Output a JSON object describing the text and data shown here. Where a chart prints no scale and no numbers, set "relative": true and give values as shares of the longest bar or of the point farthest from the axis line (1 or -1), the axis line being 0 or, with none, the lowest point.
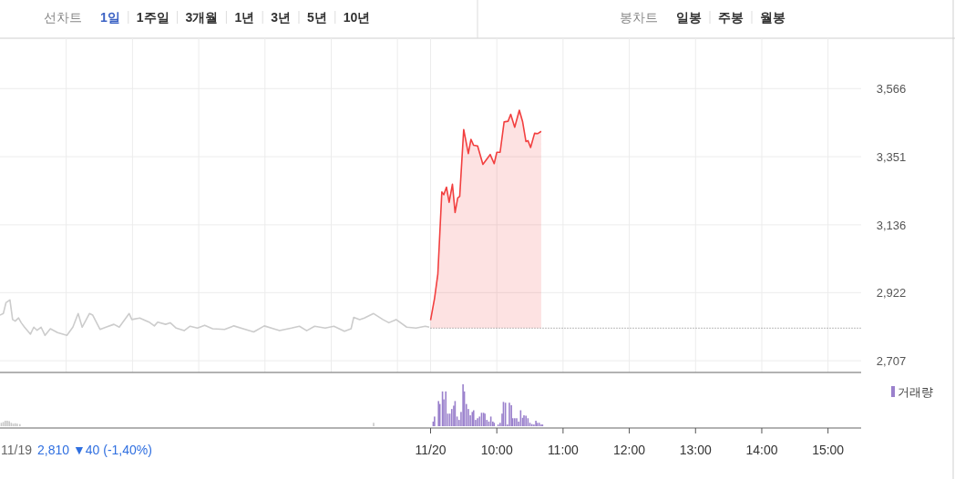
{
  "chart_data": [
    {
      "type": "other",
      "annotations": [
        "선차트",
        "1일",
        "1주일",
        "3개월",
        "1년",
        "3년",
        "5년",
        "10년",
        "봉차트",
        "일봉",
        "주봉",
        "월봉"
      ]
    },
    {
      "type": "line",
      "grid": true,
      "tick_labels": "y",
      "xlim": [
        2.5,
        15.5
      ],
      "ylim": [
        2670,
        3725
      ],
      "xticks": [
        {
          "value": 3.5,
          "label": null
        },
        {
          "value": 4.5,
          "label": null
        },
        {
          "value": 5.5,
          "label": null
        },
        {
          "value": 6.5,
          "label": null
        },
        {
          "value": 7.5,
          "label": null
        },
        {
          "value": 8.5,
          "label": null
        },
        {
          "value": 9,
          "label": null
        },
        {
          "value": 10,
          "label": null
        },
        {
          "value": 11,
          "label": null
        },
        {
          "value": 12,
          "label": null
        },
        {
          "value": 13,
          "label": null
        },
        {
          "value": 14,
          "label": null
        },
        {
          "value": 15,
          "label": null
        }
      ],
      "yticks": [
        {
          "value": 2707,
          "label": "2,707"
        },
        {
          "value": 2922,
          "label": "2,922"
        },
        {
          "value": 3136,
          "label": "3,136"
        },
        {
          "value": 3351,
          "label": "3,351"
        },
        {
          "value": 3566,
          "label": "3,566"
        }
      ],
      "ref_lines": [
        {
          "axis": "y",
          "value": 2810,
          "color": "#777777",
          "line_style": "dotted"
        }
      ],
      "series": [
        {
          "color": "#cccccc",
          "x": [
            2.5,
            2.55,
            2.59,
            2.65,
            2.69,
            2.73,
            2.78,
            2.82,
            2.87,
            2.96,
            3.01,
            3.06,
            3.12,
            3.18,
            3.26,
            3.37,
            3.51,
            3.6,
            3.68,
            3.74,
            3.85,
            3.9,
            4.01,
            4.1,
            4.22,
            4.3,
            4.45,
            4.49,
            4.61,
            4.75,
            4.83,
            4.88,
            5.0,
            5.07,
            5.16,
            5.28,
            5.37,
            5.48,
            5.59,
            5.71,
            5.89,
            6.03,
            6.17,
            6.33,
            6.49,
            6.63,
            6.72,
            6.9,
            7.02,
            7.13,
            7.25,
            7.41,
            7.54,
            7.7,
            7.8,
            7.84,
            7.93,
            8.0,
            8.14,
            8.28,
            8.37,
            8.48,
            8.64,
            8.78,
            8.92,
            8.98
          ],
          "values": [
            2851,
            2856,
            2890,
            2899,
            2837,
            2832,
            2842,
            2827,
            2813,
            2791,
            2813,
            2803,
            2813,
            2787,
            2808,
            2796,
            2787,
            2813,
            2856,
            2813,
            2856,
            2851,
            2806,
            2813,
            2822,
            2813,
            2856,
            2837,
            2842,
            2829,
            2817,
            2829,
            2822,
            2827,
            2810,
            2802,
            2816,
            2810,
            2819,
            2808,
            2806,
            2817,
            2808,
            2798,
            2817,
            2808,
            2802,
            2810,
            2816,
            2802,
            2816,
            2810,
            2816,
            2800,
            2808,
            2844,
            2837,
            2842,
            2856,
            2837,
            2827,
            2837,
            2813,
            2810,
            2816,
            2813
          ]
        },
        {
          "type": "area",
          "color": "#f23f3f",
          "x": [
            9.0,
            9.06,
            9.11,
            9.17,
            9.2,
            9.24,
            9.28,
            9.33,
            9.37,
            9.41,
            9.44,
            9.5,
            9.57,
            9.61,
            9.65,
            9.71,
            9.79,
            9.9,
            9.96,
            10.0,
            10.05,
            10.11,
            10.17,
            10.21,
            10.27,
            10.34,
            10.39,
            10.44,
            10.47,
            10.51,
            10.57,
            10.62,
            10.67
          ],
          "values": [
            2835,
            2904,
            2981,
            3240,
            3231,
            3255,
            3207,
            3264,
            3175,
            3221,
            3226,
            3437,
            3361,
            3406,
            3387,
            3385,
            3327,
            3358,
            3329,
            3365,
            3365,
            3461,
            3463,
            3485,
            3444,
            3498,
            3461,
            3399,
            3402,
            3380,
            3425,
            3424,
            3431
          ]
        }
      ]
    },
    {
      "type": "bar",
      "relative": true,
      "tick_labels": "x",
      "legend": "top right",
      "xlim": [
        2.5,
        15.5
      ],
      "xticks": [
        {
          "value": 9,
          "label": "11/20"
        },
        {
          "value": 10,
          "label": "10:00"
        },
        {
          "value": 11,
          "label": "11:00"
        },
        {
          "value": 12,
          "label": "12:00"
        },
        {
          "value": 13,
          "label": "13:00"
        },
        {
          "value": 14,
          "label": "14:00"
        },
        {
          "value": 15,
          "label": "15:00"
        }
      ],
      "annotations": [
        "11/19",
        "2,810 ▼40 (-1,40%)"
      ],
      "series": [
        {
          "color": "#c8c8c8",
          "x": [
            2.52,
            2.55,
            2.58,
            2.61,
            2.64,
            2.67,
            2.7,
            2.73,
            2.76,
            2.8,
            8.14
          ],
          "values": [
            0.08,
            0.1,
            0.13,
            0.13,
            0.12,
            0.08,
            0.06,
            0.07,
            0.06,
            0.05,
            0.08
          ]
        },
        {
          "name": "거래량",
          "color": "#9a80cc",
          "x": [
            9.04,
            9.06,
            9.12,
            9.14,
            9.18,
            9.2,
            9.23,
            9.26,
            9.29,
            9.32,
            9.35,
            9.37,
            9.4,
            9.43,
            9.46,
            9.49,
            9.51,
            9.54,
            9.57,
            9.6,
            9.63,
            9.65,
            9.68,
            9.71,
            9.74,
            9.77,
            9.8,
            9.82,
            9.85,
            9.88,
            9.91,
            9.94,
            9.96,
            10.02,
            10.05,
            10.08,
            10.1,
            10.13,
            10.16,
            10.19,
            10.22,
            10.24,
            10.27,
            10.3,
            10.33,
            10.36,
            10.39,
            10.41,
            10.44,
            10.47,
            10.5,
            10.53,
            10.56,
            10.59,
            10.61,
            10.64,
            10.67,
            10.69
          ],
          "values": [
            0.11,
            0.23,
            0.6,
            0.53,
            0.83,
            0.64,
            0.83,
            0.3,
            0.3,
            0.41,
            0.49,
            0.6,
            0.23,
            0.15,
            0.34,
            1,
            0.83,
            0.53,
            0.41,
            0.26,
            0.34,
            0.38,
            0.15,
            0.19,
            0.23,
            0.32,
            0.32,
            0.3,
            0.15,
            0.11,
            0.23,
            0.11,
            0.08,
            0.04,
            0.08,
            0.3,
            0.58,
            0.56,
            0.04,
            0.56,
            0.5,
            0.19,
            0.19,
            0.19,
            0.11,
            0.38,
            0.2,
            0.26,
            0.25,
            0.19,
            0.08,
            0.05,
            0.04,
            0.13,
            0.08,
            0.08,
            0.04,
            0.04
          ]
        }
      ]
    }
  ]
}
